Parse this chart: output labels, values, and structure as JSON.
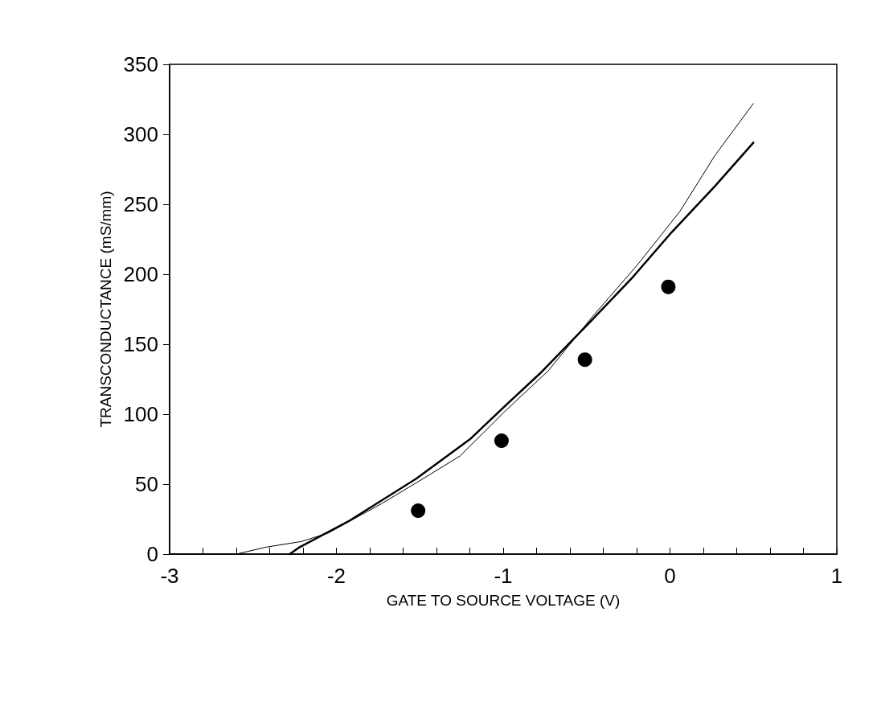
{
  "chart_data": {
    "type": "line",
    "xlabel": "GATE TO SOURCE VOLTAGE (V)",
    "ylabel": "TRANSCONDUCTANCE (mS/mm)",
    "xlim": [
      -3,
      1
    ],
    "ylim": [
      0,
      350
    ],
    "xticks": [
      -3,
      {
        "value": -2.8,
        "label": null
      },
      {
        "value": -2.6,
        "label": null
      },
      {
        "value": -2.4,
        "label": null
      },
      {
        "value": -2.2,
        "label": null
      },
      -2,
      {
        "value": -1.8,
        "label": null
      },
      {
        "value": -1.6,
        "label": null
      },
      {
        "value": -1.4,
        "label": null
      },
      {
        "value": -1.2,
        "label": null
      },
      -1,
      {
        "value": -0.8,
        "label": null
      },
      {
        "value": -0.6,
        "label": null
      },
      {
        "value": -0.4,
        "label": null
      },
      {
        "value": -0.2,
        "label": null
      },
      0,
      {
        "value": 0.2,
        "label": null
      },
      {
        "value": 0.4,
        "label": null
      },
      {
        "value": 0.6,
        "label": null
      },
      {
        "value": 0.8,
        "label": null
      },
      1
    ],
    "yticks": [
      0,
      50,
      100,
      150,
      200,
      250,
      300,
      350
    ],
    "grid": false,
    "series": [
      {
        "color": "#000000",
        "line_style": "solid",
        "marker": "none",
        "x": [
          -3,
          -2.6,
          -2.42,
          -2.21,
          -2.05,
          -1.73,
          -1.52,
          -1.26,
          -0.99,
          -0.73,
          -0.47,
          -0.2,
          0.06,
          0.27,
          0.5
        ],
        "values": [
          0,
          0,
          5,
          9,
          15,
          36,
          51,
          70,
          102,
          131,
          169,
          206,
          245,
          285,
          322
        ]
      },
      {
        "color": "#000000",
        "line_style": "solid",
        "marker": "none",
        "x": [
          -2.28,
          -2.22,
          -1.92,
          -1.52,
          -1.2,
          -0.97,
          -0.78,
          -0.47,
          -0.23,
          0.01,
          0.27,
          0.5
        ],
        "values": [
          0,
          5,
          24,
          54,
          82,
          108,
          129,
          167,
          197,
          230,
          263,
          294
        ]
      },
      {
        "type": "scatter",
        "color": "#000000",
        "marker": "circle",
        "x": [
          -1.51,
          -1.01,
          -0.51,
          -0.01
        ],
        "values": [
          31,
          81,
          139,
          191
        ]
      }
    ]
  }
}
